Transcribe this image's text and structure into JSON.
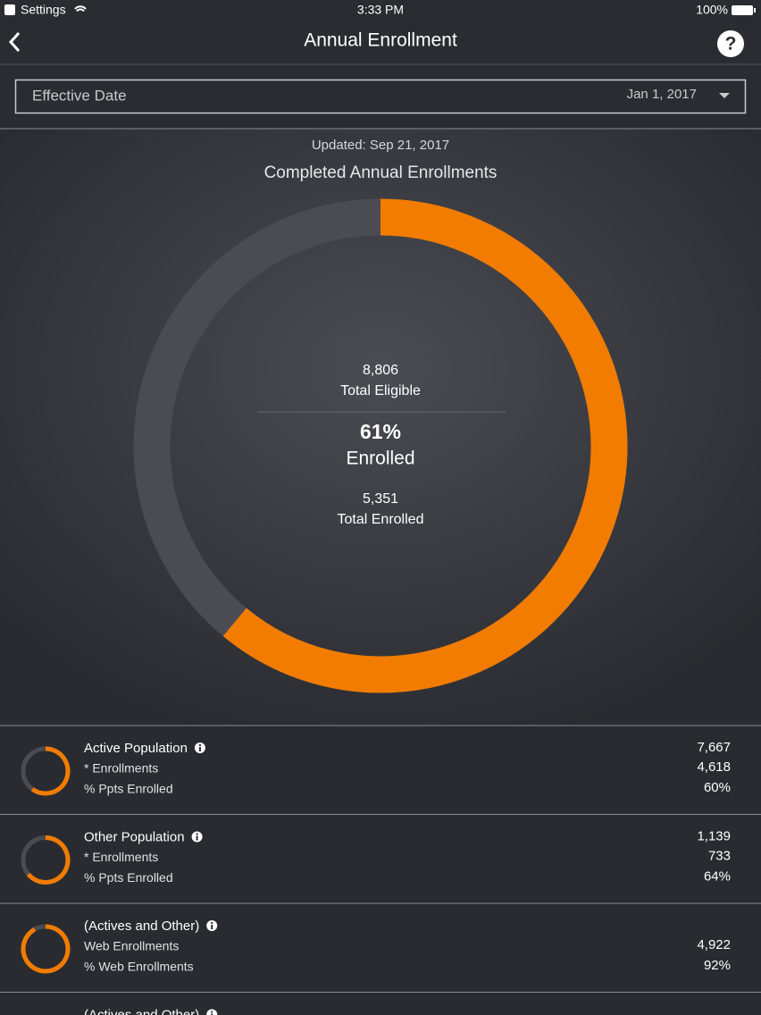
{
  "status_bar": {
    "app": "Settings",
    "time": "3:33 PM",
    "battery": "100%"
  },
  "header": {
    "title": "Annual Enrollment",
    "help": "?"
  },
  "filter": {
    "label": "Effective Date",
    "value": "Jan 1, 2017"
  },
  "summary": {
    "updated": "Updated: Sep 21, 2017",
    "title": "Completed Annual Enrollments",
    "eligible_value": "8,806",
    "eligible_label": "Total Eligible",
    "percent": {
      "value": 61,
      "label": "61%"
    },
    "percent_label": "Enrolled",
    "enrolled_value": "5,351",
    "enrolled_label": "Total Enrolled"
  },
  "rows": [
    {
      "title": "Active Population",
      "title_value": "7,667",
      "items": [
        {
          "label": "* Enrollments",
          "value": "4,618"
        },
        {
          "label": "% Ppts Enrolled",
          "value": {
            "value": 60,
            "label": "60%"
          }
        }
      ]
    },
    {
      "title": "Other Population",
      "title_value": "1,139",
      "items": [
        {
          "label": "* Enrollments",
          "value": "733"
        },
        {
          "label": "% Ppts Enrolled",
          "value": {
            "value": 64,
            "label": "64%"
          }
        }
      ]
    },
    {
      "title": "(Actives and Other)",
      "items": [
        {
          "label": "Web Enrollments",
          "value": "4,922"
        },
        {
          "label": "% Web Enrollments",
          "value": {
            "value": 92,
            "label": "92%"
          }
        }
      ]
    },
    {
      "title": "(Actives and Other)",
      "items": []
    }
  ]
}
